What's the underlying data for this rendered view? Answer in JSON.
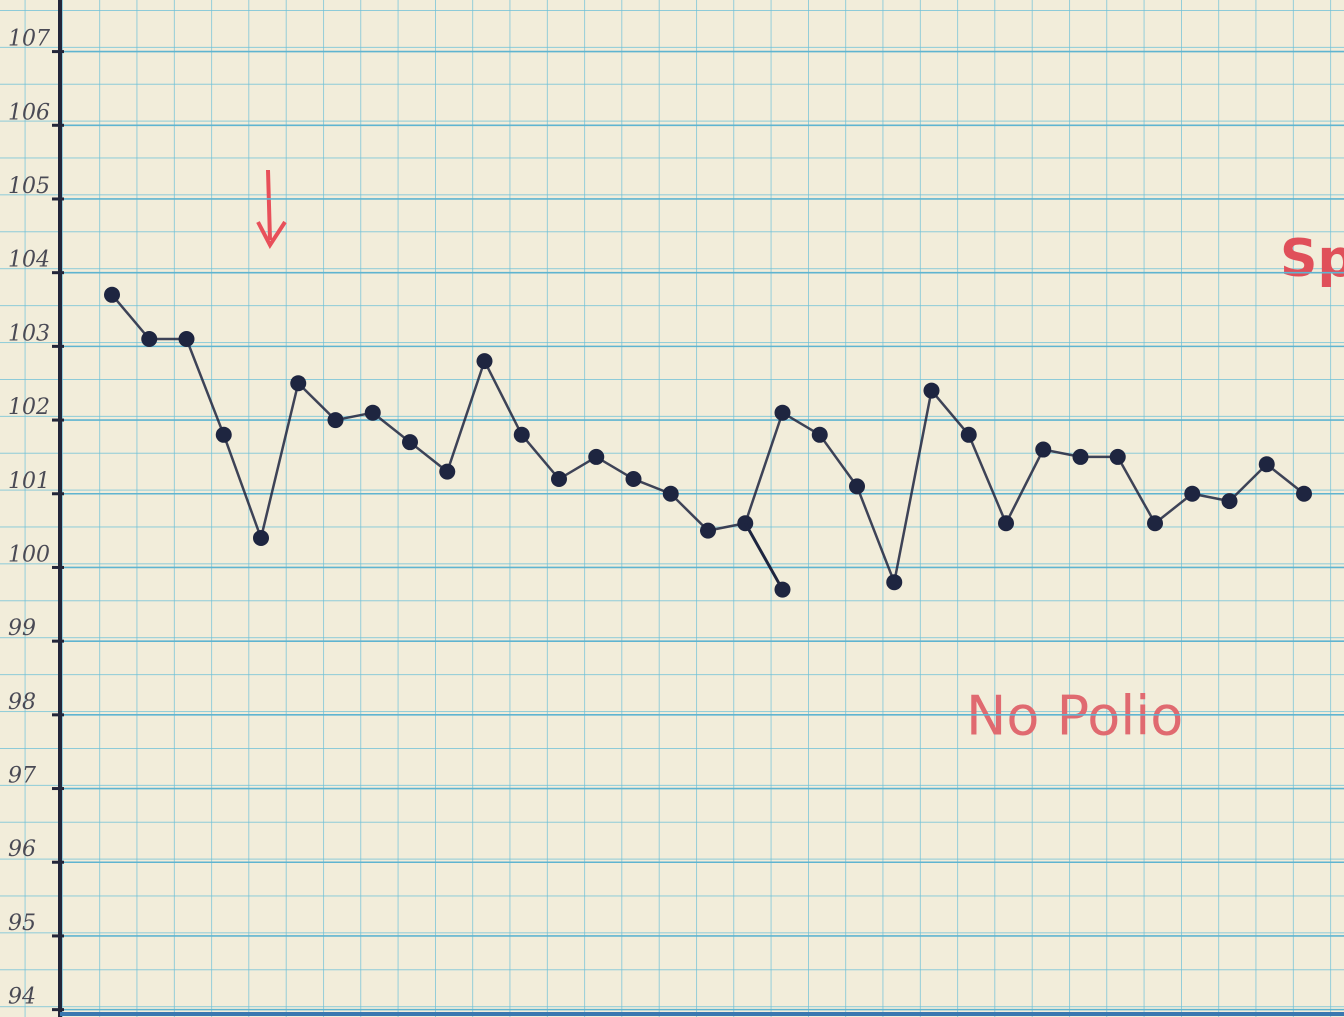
{
  "chart_data": {
    "type": "line",
    "categories": [
      null,
      null,
      null,
      null,
      null,
      null,
      null,
      null,
      null,
      null,
      null,
      null,
      null,
      null,
      null,
      null,
      null,
      null,
      null,
      null,
      null,
      null,
      null,
      null,
      null,
      null,
      null,
      null,
      null,
      null,
      null,
      null,
      null
    ],
    "series": [
      {
        "color": "#1e2540",
        "values": [
          103.7,
          103.1,
          103.1,
          101.8,
          100.4,
          102.5,
          102.0,
          102.1,
          101.7,
          101.3,
          102.8,
          101.8,
          101.2,
          101.5,
          101.2,
          101.0,
          100.5,
          100.6,
          102.1,
          101.8,
          101.1,
          99.8,
          102.4,
          101.8,
          100.6,
          101.6,
          101.5,
          101.5,
          100.6,
          101.0,
          100.9,
          101.4,
          101.0
        ]
      },
      {
        "color": "#1e2540",
        "values": [
          null,
          null,
          null,
          null,
          null,
          null,
          null,
          null,
          null,
          null,
          null,
          null,
          null,
          null,
          null,
          null,
          null,
          null,
          99.7,
          null,
          null,
          null,
          null,
          null,
          null,
          null,
          null,
          null,
          null,
          null,
          null,
          null,
          null
        ]
      }
    ],
    "ylim": [
      93.9,
      107.7
    ],
    "yticks": [
      94,
      95,
      96,
      97,
      98,
      99,
      100,
      101,
      102,
      103,
      104,
      105,
      106,
      107
    ],
    "grid": true,
    "annotations": [
      "No Polio",
      "Sp"
    ]
  }
}
